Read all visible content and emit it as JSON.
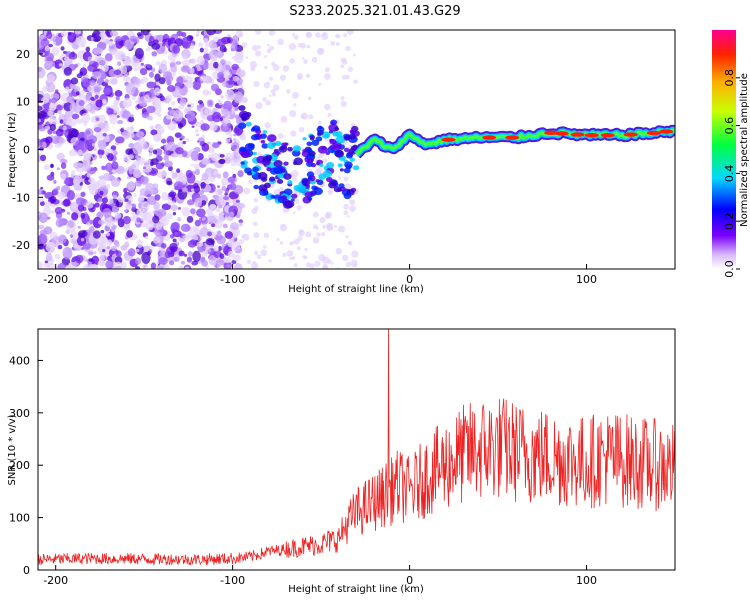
{
  "title": "S233.2025.321.01.43.G29",
  "chart_data": [
    {
      "type": "heatmap",
      "xlabel": "Height of straight line (km)",
      "ylabel": "Frequency (Hz)",
      "xlim": [
        -210,
        150
      ],
      "ylim": [
        -25,
        25
      ],
      "xticks": [
        -200,
        -100,
        0,
        100
      ],
      "xtick_labels": [
        "-200",
        "-100",
        "0",
        "100"
      ],
      "yticks": [
        -20,
        -10,
        0,
        10,
        20
      ],
      "ytick_labels": [
        "-20",
        "-10",
        "0",
        "10",
        "20"
      ],
      "ridge": {
        "description": "spectral peak frequency vs height",
        "x": [
          -95,
          -85,
          -75,
          -65,
          -55,
          -45,
          -38,
          -30,
          -20,
          -10,
          0,
          10,
          20,
          40,
          60,
          80,
          100,
          120,
          140,
          150
        ],
        "y": [
          2,
          -2,
          -4,
          -6,
          -3,
          0,
          -4,
          -1,
          2,
          0,
          3,
          1,
          2,
          2.5,
          2.5,
          3.5,
          3,
          3,
          3.5,
          4
        ]
      },
      "colorbar": {
        "label": "Normalized spectral amplitude",
        "range": [
          0.0,
          1.0
        ],
        "ticks": [
          0.0,
          0.2,
          0.4,
          0.6,
          0.8
        ],
        "tick_labels": [
          "0.0",
          "0.2",
          "0.4",
          "0.6",
          "0.8"
        ],
        "colors": [
          "#ffffff",
          "#7a00ff",
          "#0000ff",
          "#00ffff",
          "#00ff00",
          "#ffff00",
          "#ff0000",
          "#ff00aa"
        ]
      }
    },
    {
      "type": "line",
      "xlabel": "Height of straight line (km)",
      "ylabel": "SNR (10 * v/v)",
      "xlim": [
        -210,
        150
      ],
      "ylim": [
        0,
        460
      ],
      "xticks": [
        -200,
        -100,
        0,
        100
      ],
      "xtick_labels": [
        "-200",
        "-100",
        "0",
        "100"
      ],
      "yticks": [
        0,
        100,
        200,
        300,
        400
      ],
      "ytick_labels": [
        "0",
        "100",
        "200",
        "300",
        "400"
      ],
      "color": "#ee2222",
      "series": [
        {
          "name": "SNR",
          "x": [
            -210,
            -180,
            -150,
            -120,
            -100,
            -90,
            -80,
            -70,
            -60,
            -50,
            -40,
            -35,
            -30,
            -25,
            -20,
            -15,
            -12,
            -10,
            -5,
            0,
            10,
            20,
            30,
            40,
            50,
            60,
            70,
            80,
            90,
            100,
            110,
            120,
            130,
            140,
            150
          ],
          "y": [
            20,
            22,
            21,
            20,
            22,
            25,
            35,
            40,
            45,
            50,
            60,
            90,
            110,
            120,
            130,
            140,
            150,
            460,
            160,
            150,
            180,
            200,
            220,
            230,
            235,
            225,
            220,
            215,
            210,
            205,
            215,
            210,
            205,
            200,
            195
          ]
        }
      ]
    }
  ]
}
